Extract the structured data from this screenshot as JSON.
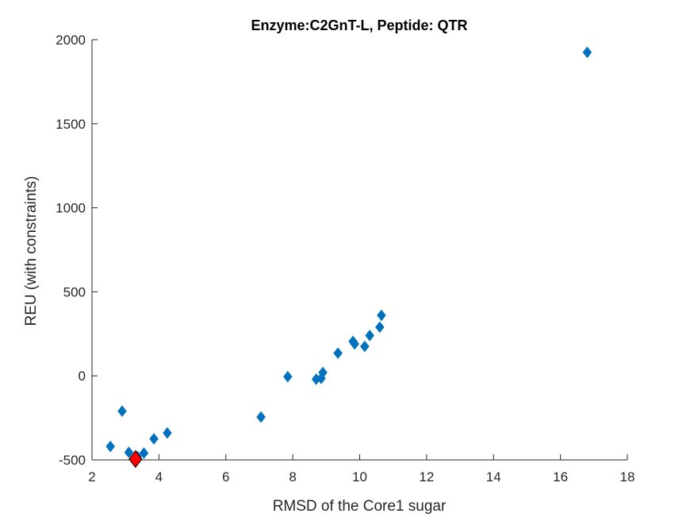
{
  "chart_data": {
    "type": "scatter",
    "title": "Enzyme:C2GnT-L, Peptide: QTR",
    "xlabel": "RMSD of the Core1 sugar",
    "ylabel": "REU (with constraints)",
    "xlim": [
      2,
      18
    ],
    "ylim": [
      -500,
      2000
    ],
    "xticks": [
      2,
      4,
      6,
      8,
      10,
      12,
      14,
      16,
      18
    ],
    "yticks": [
      -500,
      0,
      500,
      1000,
      1500,
      2000
    ],
    "xtick_labels": [
      "2",
      "4",
      "6",
      "8",
      "10",
      "12",
      "14",
      "16",
      "18"
    ],
    "ytick_labels": [
      "-500",
      "0",
      "500",
      "1000",
      "1500",
      "2000"
    ],
    "grid": false,
    "marker": "diamond",
    "series": [
      {
        "color": "#0072BD",
        "points": [
          {
            "x": 2.55,
            "y": -420
          },
          {
            "x": 2.9,
            "y": -210
          },
          {
            "x": 3.1,
            "y": -455
          },
          {
            "x": 3.35,
            "y": -480
          },
          {
            "x": 3.55,
            "y": -460
          },
          {
            "x": 3.85,
            "y": -375
          },
          {
            "x": 4.25,
            "y": -340
          },
          {
            "x": 7.05,
            "y": -245
          },
          {
            "x": 7.85,
            "y": -5
          },
          {
            "x": 8.7,
            "y": -20
          },
          {
            "x": 8.85,
            "y": -15
          },
          {
            "x": 8.9,
            "y": 20
          },
          {
            "x": 9.35,
            "y": 135
          },
          {
            "x": 9.8,
            "y": 205
          },
          {
            "x": 9.85,
            "y": 190
          },
          {
            "x": 10.15,
            "y": 175
          },
          {
            "x": 10.3,
            "y": 240
          },
          {
            "x": 10.6,
            "y": 290
          },
          {
            "x": 10.65,
            "y": 360
          },
          {
            "x": 16.8,
            "y": 1925
          }
        ]
      },
      {
        "color": "#FF0000",
        "points": [
          {
            "x": 3.3,
            "y": -495
          }
        ]
      }
    ]
  }
}
